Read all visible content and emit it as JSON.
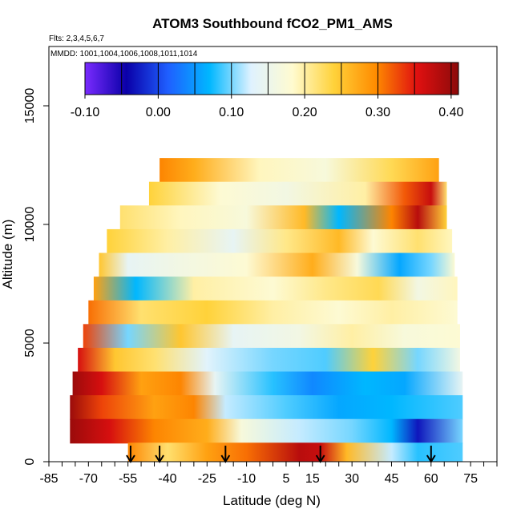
{
  "chart_data": {
    "type": "heatmap",
    "title": "ATOM3 Southbound fCO2_PM1_AMS",
    "flights_label": "Flts: 2,3,4,5,6,7",
    "mmdd_label": "MMDD: 1001,1004,1006,1008,1011,1014",
    "xlabel": "Latitude (deg N)",
    "ylabel": "Altitude (m)",
    "x_tick_labels": [
      "-85",
      "-70",
      "-55",
      "-40",
      "-25",
      "-10",
      "5",
      "15",
      "30",
      "45",
      "60",
      "75"
    ],
    "x_tick_values": [
      -85,
      -70,
      -55,
      -40,
      -25,
      -10,
      5,
      15,
      30,
      45,
      60,
      75
    ],
    "y_tick_labels": [
      "0",
      "5000",
      "10000",
      "15000"
    ],
    "y_tick_values": [
      0,
      5000,
      10000,
      15000
    ],
    "xlim": [
      -85,
      85
    ],
    "ylim": [
      0,
      17500
    ],
    "colorbar": {
      "min": -0.1,
      "max": 0.41,
      "tick_labels": [
        "-0.10",
        "0.00",
        "0.10",
        "0.20",
        "0.30",
        "0.40"
      ],
      "tick_values": [
        -0.1,
        0.0,
        0.1,
        0.2,
        0.3,
        0.4
      ],
      "colors": [
        "#7a2bff",
        "#0a00a8",
        "#1f5fff",
        "#00b7ff",
        "#dff2ff",
        "#fffbd0",
        "#ffd23a",
        "#ff8c00",
        "#e01010",
        "#8c0a0a"
      ]
    },
    "profile_latitudes": [
      -54,
      -43,
      -18,
      18,
      60
    ],
    "rows": [
      {
        "alt": 12300,
        "lon0": -43,
        "lon1": 63,
        "stops": [
          [
            -43,
            0.3
          ],
          [
            -30,
            0.27
          ],
          [
            -5,
            0.19
          ],
          [
            20,
            0.17
          ],
          [
            45,
            0.23
          ],
          [
            63,
            0.28
          ]
        ]
      },
      {
        "alt": 11300,
        "lon0": -47,
        "lon1": 66,
        "stops": [
          [
            -47,
            0.24
          ],
          [
            -20,
            0.18
          ],
          [
            5,
            0.16
          ],
          [
            35,
            0.2
          ],
          [
            50,
            0.32
          ],
          [
            60,
            0.37
          ],
          [
            66,
            0.22
          ]
        ]
      },
      {
        "alt": 10300,
        "lon0": -58,
        "lon1": 66,
        "stops": [
          [
            -58,
            0.22
          ],
          [
            -35,
            0.19
          ],
          [
            -10,
            0.17
          ],
          [
            12,
            0.26
          ],
          [
            25,
            0.07
          ],
          [
            45,
            0.3
          ],
          [
            55,
            0.38
          ],
          [
            66,
            0.24
          ]
        ]
      },
      {
        "alt": 9300,
        "lon0": -63,
        "lon1": 68,
        "stops": [
          [
            -63,
            0.24
          ],
          [
            -40,
            0.2
          ],
          [
            -15,
            0.14
          ],
          [
            5,
            0.21
          ],
          [
            25,
            0.26
          ],
          [
            38,
            0.18
          ],
          [
            55,
            0.22
          ],
          [
            68,
            0.19
          ]
        ]
      },
      {
        "alt": 8300,
        "lon0": -66,
        "lon1": 69,
        "stops": [
          [
            -66,
            0.25
          ],
          [
            -55,
            0.14
          ],
          [
            -35,
            0.16
          ],
          [
            -10,
            0.18
          ],
          [
            15,
            0.27
          ],
          [
            32,
            0.17
          ],
          [
            48,
            0.06
          ],
          [
            60,
            0.1
          ],
          [
            69,
            0.18
          ]
        ]
      },
      {
        "alt": 7300,
        "lon0": -68,
        "lon1": 70,
        "stops": [
          [
            -68,
            0.28
          ],
          [
            -52,
            0.07
          ],
          [
            -30,
            0.2
          ],
          [
            0,
            0.18
          ],
          [
            20,
            0.21
          ],
          [
            40,
            0.23
          ],
          [
            55,
            0.16
          ],
          [
            70,
            0.19
          ]
        ]
      },
      {
        "alt": 6300,
        "lon0": -70,
        "lon1": 70,
        "stops": [
          [
            -70,
            0.31
          ],
          [
            -50,
            0.22
          ],
          [
            -25,
            0.24
          ],
          [
            0,
            0.2
          ],
          [
            25,
            0.18
          ],
          [
            45,
            0.2
          ],
          [
            70,
            0.18
          ]
        ]
      },
      {
        "alt": 5300,
        "lon0": -72,
        "lon1": 71,
        "stops": [
          [
            -72,
            0.33
          ],
          [
            -55,
            0.1
          ],
          [
            -35,
            0.25
          ],
          [
            -15,
            0.14
          ],
          [
            10,
            0.16
          ],
          [
            30,
            0.2
          ],
          [
            50,
            0.17
          ],
          [
            71,
            0.18
          ]
        ]
      },
      {
        "alt": 4300,
        "lon0": -74,
        "lon1": 71,
        "stops": [
          [
            -74,
            0.36
          ],
          [
            -60,
            0.25
          ],
          [
            -45,
            0.22
          ],
          [
            -25,
            0.13
          ],
          [
            0,
            0.1
          ],
          [
            20,
            0.09
          ],
          [
            38,
            0.24
          ],
          [
            55,
            0.1
          ],
          [
            71,
            0.16
          ]
        ]
      },
      {
        "alt": 3300,
        "lon0": -76,
        "lon1": 72,
        "stops": [
          [
            -76,
            0.4
          ],
          [
            -65,
            0.36
          ],
          [
            -50,
            0.28
          ],
          [
            -35,
            0.3
          ],
          [
            -22,
            0.14
          ],
          [
            0,
            0.08
          ],
          [
            15,
            0.04
          ],
          [
            35,
            0.07
          ],
          [
            50,
            0.06
          ],
          [
            72,
            0.14
          ]
        ]
      },
      {
        "alt": 2300,
        "lon0": -77,
        "lon1": 72,
        "stops": [
          [
            -77,
            0.4
          ],
          [
            -65,
            0.33
          ],
          [
            -45,
            0.28
          ],
          [
            -30,
            0.3
          ],
          [
            -18,
            0.12
          ],
          [
            5,
            0.09
          ],
          [
            25,
            0.06
          ],
          [
            45,
            0.07
          ],
          [
            72,
            0.09
          ]
        ]
      },
      {
        "alt": 1300,
        "lon0": -77,
        "lon1": 72,
        "stops": [
          [
            -77,
            0.4
          ],
          [
            -62,
            0.36
          ],
          [
            -45,
            0.3
          ],
          [
            -25,
            0.27
          ],
          [
            -12,
            0.17
          ],
          [
            10,
            0.12
          ],
          [
            30,
            0.1
          ],
          [
            45,
            0.07
          ],
          [
            55,
            -0.03
          ],
          [
            72,
            0.1
          ]
        ]
      },
      {
        "alt": 300,
        "lon0": -55,
        "lon1": 72,
        "stops": [
          [
            -55,
            0.3
          ],
          [
            -40,
            0.22
          ],
          [
            -25,
            0.28
          ],
          [
            -10,
            0.31
          ],
          [
            10,
            0.38
          ],
          [
            18,
            0.37
          ],
          [
            28,
            0.26
          ],
          [
            45,
            0.12
          ],
          [
            55,
            0.08
          ],
          [
            72,
            0.09
          ]
        ]
      }
    ]
  }
}
